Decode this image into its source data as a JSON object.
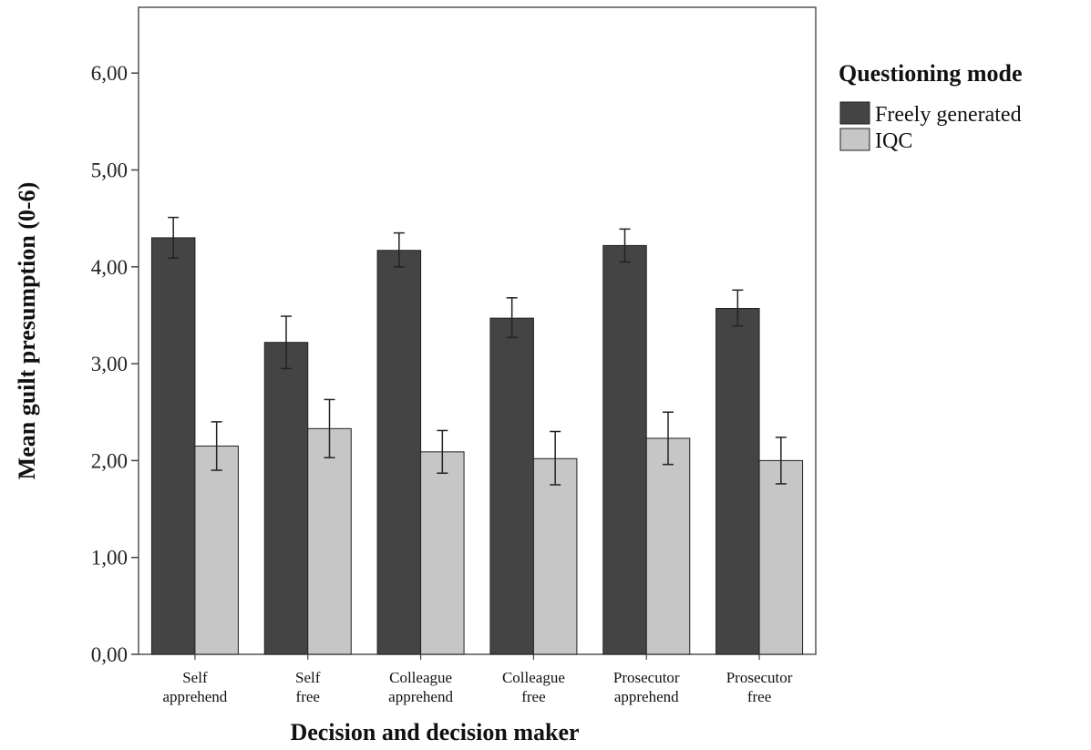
{
  "chart_data": {
    "type": "bar",
    "xlabel": "Decision and decision maker",
    "ylabel": "Mean guilt presumption (0-6)",
    "ylim": [
      0,
      6.6
    ],
    "yticks": [
      "0,00",
      "1,00",
      "2,00",
      "3,00",
      "4,00",
      "5,00",
      "6,00"
    ],
    "categories": [
      [
        "Self",
        "apprehend"
      ],
      [
        "Self",
        "free"
      ],
      [
        "Colleague",
        "apprehend"
      ],
      [
        "Colleague",
        "free"
      ],
      [
        "Prosecutor",
        "apprehend"
      ],
      [
        "Prosecutor",
        "free"
      ]
    ],
    "legend": {
      "title": "Questioning mode",
      "position": "right"
    },
    "series": [
      {
        "name": "Freely generated",
        "color": "#444444",
        "values": [
          4.3,
          3.22,
          4.17,
          3.47,
          4.22,
          3.57
        ],
        "error_low": [
          4.09,
          2.95,
          4.0,
          3.27,
          4.05,
          3.39
        ],
        "error_high": [
          4.51,
          3.49,
          4.35,
          3.68,
          4.39,
          3.76
        ]
      },
      {
        "name": "IQC",
        "color": "#c6c6c6",
        "values": [
          2.15,
          2.33,
          2.09,
          2.02,
          2.23,
          2.0
        ],
        "error_low": [
          1.9,
          2.03,
          1.87,
          1.75,
          1.96,
          1.76
        ],
        "error_high": [
          2.4,
          2.63,
          2.31,
          2.3,
          2.5,
          2.24
        ]
      }
    ],
    "grid": false
  }
}
